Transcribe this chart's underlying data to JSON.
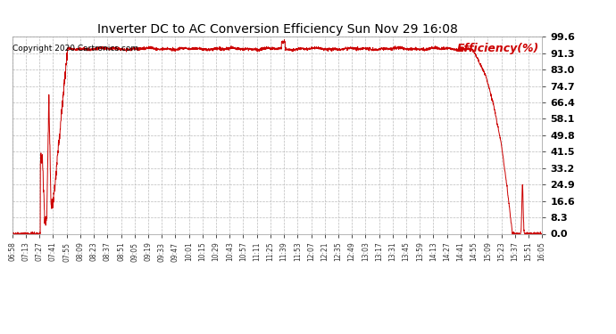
{
  "title": "Inverter DC to AC Conversion Efficiency Sun Nov 29 16:08",
  "copyright": "Copyright 2020 Cartronics.com",
  "legend_label": "Efficiency(%)",
  "y_ticks": [
    0.0,
    8.3,
    16.6,
    24.9,
    33.2,
    41.5,
    49.8,
    58.1,
    66.4,
    74.7,
    83.0,
    91.3,
    99.6
  ],
  "y_min": 0.0,
  "y_max": 99.6,
  "line_color": "#cc0000",
  "background_color": "#ffffff",
  "grid_color": "#bbbbbb",
  "title_color": "#000000",
  "copyright_color": "#000000",
  "legend_color": "#cc0000",
  "x_tick_labels": [
    "06:58",
    "07:13",
    "07:27",
    "07:41",
    "07:55",
    "08:09",
    "08:23",
    "08:37",
    "08:51",
    "09:05",
    "09:19",
    "09:33",
    "09:47",
    "10:01",
    "10:15",
    "10:29",
    "10:43",
    "10:57",
    "11:11",
    "11:25",
    "11:39",
    "11:53",
    "12:07",
    "12:21",
    "12:35",
    "12:49",
    "13:03",
    "13:17",
    "13:31",
    "13:45",
    "13:59",
    "14:13",
    "14:27",
    "14:41",
    "14:55",
    "15:09",
    "15:23",
    "15:37",
    "15:51",
    "16:05"
  ]
}
